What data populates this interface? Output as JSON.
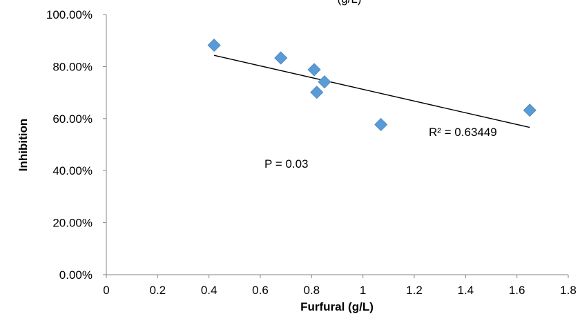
{
  "chart_data": {
    "type": "scatter",
    "title": "(g/L)",
    "xlabel": "Furfural (g/L)",
    "ylabel": "Inhibition",
    "xlim": [
      0,
      1.8
    ],
    "ylim": [
      0,
      1.0
    ],
    "x_ticks": [
      "0",
      "0.2",
      "0.4",
      "0.6",
      "0.8",
      "1",
      "1.2",
      "1.4",
      "1.6",
      "1.8"
    ],
    "y_ticks": [
      "0.00%",
      "20.00%",
      "40.00%",
      "60.00%",
      "80.00%",
      "100.00%"
    ],
    "grid": false,
    "marker": "diamond",
    "series": [
      {
        "color": "#5b9bd5",
        "points": [
          {
            "x": 0.42,
            "y": 0.882
          },
          {
            "x": 0.68,
            "y": 0.833
          },
          {
            "x": 0.81,
            "y": 0.788
          },
          {
            "x": 0.85,
            "y": 0.741
          },
          {
            "x": 0.82,
            "y": 0.701
          },
          {
            "x": 1.07,
            "y": 0.577
          },
          {
            "x": 1.65,
            "y": 0.632
          }
        ]
      }
    ],
    "trendline": {
      "type": "linear",
      "color": "#000000",
      "x_start": 0.42,
      "y_start": 0.843,
      "x_end": 1.65,
      "y_end": 0.566
    },
    "annotations": {
      "r_squared": "R² = 0.63449",
      "p_value": "P = 0.03"
    }
  }
}
